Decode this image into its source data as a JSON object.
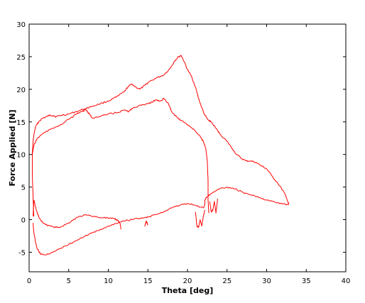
{
  "chart_data": {
    "type": "line",
    "title": "",
    "xlabel": "Theta [deg]",
    "ylabel": "Force Applied [N]",
    "xlim": [
      0,
      40
    ],
    "ylim": [
      -8,
      30
    ],
    "xticks": [
      0,
      5,
      10,
      15,
      20,
      25,
      30,
      35,
      40
    ],
    "yticks": [
      -5,
      0,
      5,
      10,
      15,
      20,
      25,
      30
    ],
    "grid": false,
    "legend": "none",
    "line_color": "#ff0000",
    "series": [
      {
        "x": [
          0.6,
          0.5,
          0.4,
          0.4,
          0.5,
          0.6,
          0.8,
          1.2,
          1.6,
          2.2,
          2.6,
          3.0,
          3.4,
          4.0,
          5.0,
          6.0,
          7.0,
          8.0,
          9.0,
          10.0,
          11.0,
          12.0,
          12.5,
          13.0,
          13.4,
          14.0,
          14.6,
          15.2,
          16.2,
          17.0,
          17.8,
          18.4,
          18.9,
          19.2,
          19.6,
          20.0,
          20.5,
          21.0,
          21.4,
          21.8,
          22.2,
          22.6,
          23.0,
          23.6,
          24.2,
          25.0,
          25.6,
          26.2,
          26.8,
          27.4,
          28.0,
          28.6,
          29.4,
          30.0,
          30.6,
          31.4,
          32.2,
          32.6,
          32.8
        ],
        "y": [
          0.5,
          3.5,
          7.0,
          10.0,
          12.0,
          13.0,
          14.2,
          15.0,
          15.5,
          15.8,
          16.0,
          16.0,
          15.8,
          16.0,
          16.2,
          16.6,
          17.0,
          17.4,
          17.8,
          18.2,
          18.8,
          19.6,
          20.4,
          20.8,
          20.4,
          20.0,
          20.6,
          21.2,
          21.8,
          22.2,
          23.2,
          24.4,
          25.0,
          25.2,
          24.2,
          23.0,
          22.0,
          20.4,
          18.6,
          17.2,
          16.0,
          15.3,
          15.0,
          14.0,
          13.0,
          12.0,
          11.0,
          10.0,
          9.4,
          9.0,
          9.0,
          8.8,
          8.2,
          7.8,
          6.8,
          5.6,
          4.2,
          3.0,
          2.4
        ]
      },
      {
        "x": [
          32.8,
          32.0,
          31.0,
          30.0,
          29.0,
          28.0,
          27.0,
          26.0,
          25.0,
          24.0,
          23.0,
          22.4,
          22.2,
          22.2,
          22.0,
          21.0,
          20.0,
          19.0,
          18.0,
          17.0,
          16.0,
          15.0,
          14.6,
          14.0,
          13.0,
          12.0,
          11.0,
          10.0,
          9.0,
          8.0,
          7.0,
          6.0,
          5.0,
          4.0,
          3.0,
          2.0,
          1.4,
          1.0,
          0.8,
          0.6,
          0.5
        ],
        "y": [
          2.3,
          2.4,
          2.7,
          3.0,
          3.4,
          3.8,
          4.2,
          4.7,
          5.0,
          4.7,
          4.0,
          3.4,
          3.0,
          2.4,
          1.8,
          2.2,
          2.5,
          2.2,
          1.8,
          1.2,
          0.8,
          0.4,
          0.3,
          0.2,
          0.0,
          -0.2,
          -0.6,
          -1.0,
          -1.5,
          -2.0,
          -2.6,
          -3.2,
          -3.8,
          -4.4,
          -5.0,
          -5.4,
          -5.2,
          -4.4,
          -3.4,
          -2.0,
          -0.5
        ]
      },
      {
        "x": [
          0.5,
          0.6,
          0.9,
          1.3,
          1.8,
          2.4,
          3.0,
          3.6,
          4.2,
          5.0,
          5.6,
          6.2,
          7.0,
          7.8,
          8.6,
          9.4,
          10.2,
          10.8,
          11.2,
          11.5,
          11.6
        ],
        "y": [
          0.5,
          3.0,
          1.5,
          0.2,
          -0.6,
          -0.9,
          -1.1,
          -1.2,
          -1.0,
          -0.5,
          0.0,
          0.4,
          0.7,
          0.6,
          0.4,
          0.3,
          0.2,
          0.1,
          -0.1,
          -0.6,
          -1.5
        ]
      },
      {
        "x": [
          0.4,
          0.6,
          1.0,
          1.5,
          2.0,
          3.0,
          4.0,
          5.0,
          6.0,
          6.6,
          7.2,
          7.6,
          8.0,
          9.0,
          10.0,
          11.0,
          12.0,
          12.6,
          13.0,
          14.0,
          15.0,
          15.6,
          16.0,
          16.6,
          17.0,
          17.6,
          18.0,
          18.6,
          19.2,
          19.8,
          20.4,
          21.0,
          21.6,
          22.0,
          22.3,
          22.5,
          22.6,
          22.6,
          22.7
        ],
        "y": [
          10.0,
          11.4,
          12.4,
          13.0,
          13.4,
          14.0,
          14.6,
          15.4,
          16.2,
          16.6,
          16.8,
          16.2,
          15.6,
          15.8,
          16.2,
          16.4,
          16.8,
          16.6,
          17.0,
          17.6,
          17.8,
          18.0,
          18.4,
          18.2,
          18.6,
          17.8,
          16.6,
          15.8,
          15.2,
          14.8,
          14.2,
          13.6,
          12.8,
          12.0,
          11.0,
          9.0,
          6.0,
          3.0,
          1.0
        ]
      },
      {
        "x": [
          14.6,
          14.7,
          14.8,
          14.9,
          15.0
        ],
        "y": [
          -1.0,
          -0.6,
          -0.2,
          -0.5,
          -0.8
        ]
      },
      {
        "x": [
          21.0,
          21.2,
          21.4,
          21.6,
          21.8,
          22.0,
          22.2
        ],
        "y": [
          1.2,
          -1.0,
          -1.2,
          0.0,
          -1.0,
          0.5,
          1.5
        ]
      },
      {
        "x": [
          22.8,
          23.0,
          23.2,
          23.4,
          23.6,
          23.8
        ],
        "y": [
          2.8,
          1.2,
          1.5,
          2.8,
          1.0,
          3.2
        ]
      }
    ]
  }
}
